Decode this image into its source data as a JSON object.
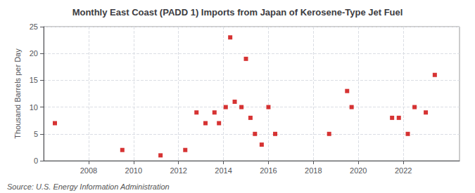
{
  "chart_data": {
    "type": "scatter",
    "title": "Monthly East Coast (PADD 1) Imports from Japan of Kerosene-Type Jet Fuel",
    "ylabel": "Thousand Barrels per Day",
    "annotations": [
      "Source: U.S. Energy Information Administration"
    ],
    "color": "#cc0000",
    "marker": "square",
    "grid": true,
    "x": [
      2006.5,
      2009.5,
      2011.2,
      2012.3,
      2012.8,
      2013.2,
      2013.6,
      2013.8,
      2014.1,
      2014.3,
      2014.5,
      2014.8,
      2015.0,
      2015.2,
      2015.4,
      2015.7,
      2016.0,
      2016.3,
      2018.7,
      2019.5,
      2019.7,
      2021.5,
      2021.8,
      2022.2,
      2022.5,
      2023.0,
      2023.4
    ],
    "values": [
      7,
      2,
      1,
      2,
      9,
      7,
      9,
      7,
      10,
      23,
      11,
      10,
      19,
      8,
      5,
      3,
      10,
      5,
      5,
      13,
      10,
      8,
      8,
      5,
      10,
      9,
      16
    ],
    "xlim": [
      2006.0,
      2024.5
    ],
    "xticks": [
      2008,
      2010,
      2012,
      2014,
      2016,
      2018,
      2020,
      2022
    ],
    "ylim": [
      0,
      25
    ],
    "yticks": [
      0,
      5,
      10,
      15,
      20,
      25
    ]
  }
}
